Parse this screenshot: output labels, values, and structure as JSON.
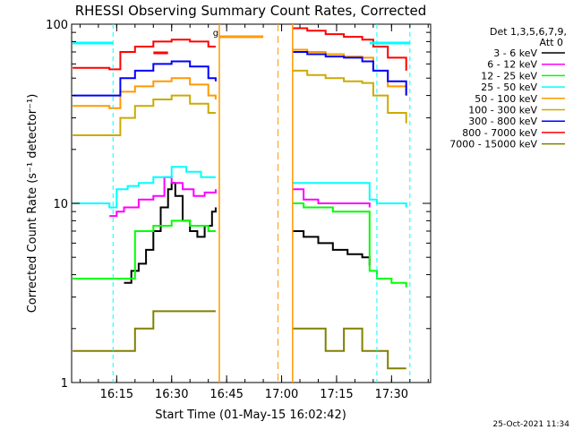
{
  "chart_data": {
    "type": "line",
    "title": "RHESSI Observing Summary Count Rates, Corrected",
    "xlabel": "Start Time (01-May-15 16:02:42)",
    "ylabel": "Corrected Count Rate (s⁻¹ detector⁻¹)",
    "yscale": "log",
    "ylim": [
      1,
      100
    ],
    "xlim": [
      "16:02:42",
      "17:40:40"
    ],
    "x_ticks": [
      "16:15",
      "16:30",
      "16:45",
      "17:00",
      "17:15",
      "17:30"
    ],
    "y_ticks": [
      "1",
      "10",
      "100"
    ],
    "grid": false,
    "legend_position": "top-right",
    "legend_header": [
      "Det 1,3,5,6,7,9,",
      "Att 0"
    ],
    "timestamp": "25-Oct-2021 11:34",
    "series": [
      {
        "name": "3 - 6 keV",
        "color": "#000000",
        "x": [
          "16:03",
          "16:11",
          "16:13",
          "16:15",
          "16:17",
          "16:19",
          "16:21",
          "16:23",
          "16:25",
          "16:27",
          "16:29",
          "16:30",
          "16:31",
          "16:33",
          "16:35",
          "16:37",
          "16:39",
          "16:41",
          "16:42"
        ],
        "y": [
          null,
          null,
          null,
          null,
          3.6,
          4.2,
          4.6,
          5.5,
          7.0,
          9.5,
          12,
          13,
          11,
          8,
          7,
          6.5,
          7.5,
          9.0,
          9.5
        ]
      },
      {
        "name": "6 - 12 keV",
        "color": "#ff00ff",
        "x": [
          "16:03",
          "16:13",
          "16:15",
          "16:17",
          "16:21",
          "16:25",
          "16:28",
          "16:30",
          "16:33",
          "16:36",
          "16:39",
          "16:42"
        ],
        "y": [
          null,
          8.5,
          9.0,
          9.5,
          10.5,
          11,
          14,
          13,
          12,
          11,
          11.5,
          12
        ]
      },
      {
        "name": "12 - 25 keV",
        "color": "#00ff00",
        "x": [
          "16:03",
          "16:11",
          "16:13",
          "16:16",
          "16:20",
          "16:25",
          "16:30",
          "16:35",
          "16:40",
          "16:42"
        ],
        "y": [
          3.8,
          3.8,
          3.8,
          3.8,
          7.0,
          7.5,
          8.0,
          7.5,
          7.0,
          7.0
        ]
      },
      {
        "name": "25 - 50 keV",
        "color": "#00ffff",
        "x": [
          "16:03",
          "16:11",
          "16:13",
          "16:15",
          "16:18",
          "16:21",
          "16:25",
          "16:30",
          "16:34",
          "16:38",
          "16:42"
        ],
        "y": [
          10,
          10,
          9.5,
          12,
          12.5,
          13,
          14,
          16,
          15,
          14,
          14
        ]
      },
      {
        "name": "50 - 100 keV",
        "color": "#ff9900",
        "x": [
          "16:03",
          "16:11",
          "16:13",
          "16:16",
          "16:20",
          "16:25",
          "16:30",
          "16:35",
          "16:40",
          "16:42"
        ],
        "y": [
          35,
          35,
          34,
          42,
          45,
          48,
          50,
          46,
          40,
          38
        ]
      },
      {
        "name": "100 - 300 keV",
        "color": "#ccaa00",
        "x": [
          "16:03",
          "16:11",
          "16:13",
          "16:16",
          "16:20",
          "16:25",
          "16:30",
          "16:35",
          "16:40",
          "16:42"
        ],
        "y": [
          24,
          24,
          24,
          30,
          35,
          38,
          40,
          36,
          32,
          32
        ]
      },
      {
        "name": "300 - 800 keV",
        "color": "#0000ff",
        "x": [
          "16:03",
          "16:11",
          "16:13",
          "16:16",
          "16:20",
          "16:25",
          "16:30",
          "16:35",
          "16:40",
          "16:42"
        ],
        "y": [
          40,
          40,
          40,
          50,
          55,
          60,
          62,
          58,
          50,
          48
        ]
      },
      {
        "name": "800 - 7000 keV",
        "color": "#ff0000",
        "x": [
          "16:03",
          "16:11",
          "16:13",
          "16:16",
          "16:20",
          "16:25",
          "16:30",
          "16:35",
          "16:40",
          "16:42"
        ],
        "y": [
          57,
          57,
          56,
          70,
          75,
          80,
          82,
          80,
          75,
          75
        ]
      },
      {
        "name": "7000 - 15000 keV",
        "color": "#808000",
        "x": [
          "16:03",
          "16:11",
          "16:13",
          "16:16",
          "16:20",
          "16:25",
          "16:30",
          "16:35",
          "16:40",
          "16:42"
        ],
        "y": [
          1.5,
          1.5,
          1.5,
          1.5,
          2.0,
          2.5,
          2.5,
          2.5,
          2.5,
          2.5
        ]
      }
    ],
    "series_after_gap": [
      {
        "name": "3 - 6 keV",
        "x": [
          "17:03",
          "17:06",
          "17:10",
          "17:14",
          "17:18",
          "17:22",
          "17:24"
        ],
        "y": [
          7.0,
          6.5,
          6.0,
          5.5,
          5.2,
          5.0,
          4.5
        ]
      },
      {
        "name": "6 - 12 keV",
        "x": [
          "17:03",
          "17:06",
          "17:10",
          "17:14",
          "17:18",
          "17:22",
          "17:24"
        ],
        "y": [
          12,
          10.5,
          10,
          10,
          10,
          10,
          9.5
        ]
      },
      {
        "name": "12 - 25 keV",
        "x": [
          "17:03",
          "17:06",
          "17:10",
          "17:14",
          "17:18",
          "17:22",
          "17:24",
          "17:26",
          "17:30",
          "17:34"
        ],
        "y": [
          10,
          9.5,
          9.5,
          9.0,
          9.0,
          9.0,
          4.2,
          3.8,
          3.6,
          3.4
        ]
      },
      {
        "name": "25 - 50 keV",
        "x": [
          "17:03",
          "17:06",
          "17:10",
          "17:14",
          "17:18",
          "17:22",
          "17:24",
          "17:26",
          "17:30",
          "17:34"
        ],
        "y": [
          13,
          13,
          13,
          13,
          13,
          13,
          10.5,
          10,
          10,
          9.5
        ]
      },
      {
        "name": "50 - 100 keV",
        "x": [
          "17:03",
          "17:07",
          "17:12",
          "17:17",
          "17:22",
          "17:25",
          "17:29",
          "17:34"
        ],
        "y": [
          72,
          70,
          68,
          66,
          65,
          55,
          45,
          40
        ]
      },
      {
        "name": "100 - 300 keV",
        "x": [
          "17:03",
          "17:07",
          "17:12",
          "17:17",
          "17:22",
          "17:25",
          "17:29",
          "17:34"
        ],
        "y": [
          55,
          52,
          50,
          48,
          47,
          40,
          32,
          28
        ]
      },
      {
        "name": "300 - 800 keV",
        "x": [
          "17:03",
          "17:07",
          "17:12",
          "17:17",
          "17:22",
          "17:25",
          "17:29",
          "17:34"
        ],
        "y": [
          70,
          68,
          66,
          65,
          62,
          55,
          48,
          40
        ]
      },
      {
        "name": "800 - 7000 keV",
        "x": [
          "17:03",
          "17:07",
          "17:12",
          "17:17",
          "17:22",
          "17:25",
          "17:29",
          "17:34"
        ],
        "y": [
          95,
          92,
          88,
          85,
          82,
          75,
          65,
          55
        ]
      },
      {
        "name": "7000 - 15000 keV",
        "x": [
          "17:03",
          "17:07",
          "17:12",
          "17:17",
          "17:22",
          "17:25",
          "17:29",
          "17:34"
        ],
        "y": [
          2.0,
          2.0,
          1.5,
          2.0,
          1.5,
          1.5,
          1.2,
          1.2
        ]
      }
    ],
    "events": {
      "gap_start": "16:43",
      "gap_end": "17:03",
      "night_start_dashed": "16:59",
      "saa_lines": [
        "16:14",
        "17:26",
        "17:35"
      ],
      "top_bars": [
        {
          "from": "16:03",
          "to": "16:14",
          "color": "#00ffff"
        },
        {
          "from": "16:43",
          "to": "16:55",
          "color": "#ff9900"
        },
        {
          "from": "17:24",
          "to": "17:35",
          "color": "#00ffff"
        },
        {
          "from": "16:25",
          "to": "16:29",
          "color": "#ff0000"
        }
      ],
      "flare_marker": "g"
    }
  }
}
